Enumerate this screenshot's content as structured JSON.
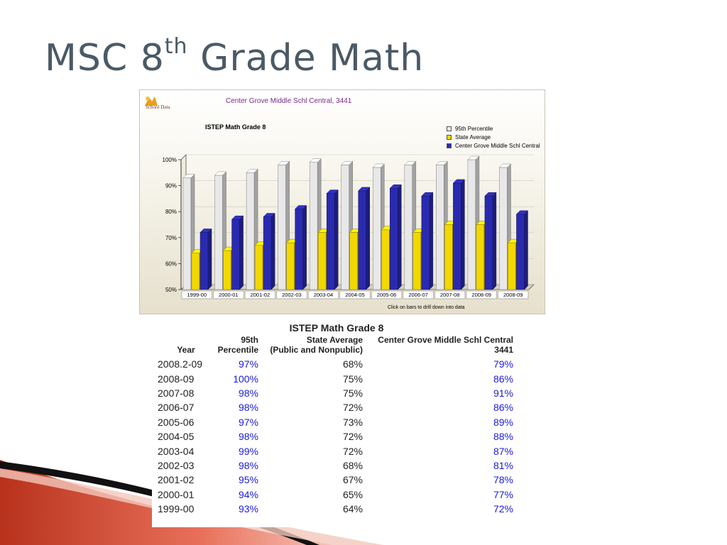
{
  "slide": {
    "title_main": "MSC 8",
    "title_sup": "th",
    "title_rest": " Grade Math"
  },
  "chart_panel": {
    "school_name": "Center Grove Middle Schl Central, 3441",
    "logo_text": "School Data",
    "click_note": "Click on bars to drill down into data"
  },
  "chart_data": {
    "type": "bar",
    "title": "ISTEP Math Grade 8",
    "categories": [
      "1999-00",
      "2000-01",
      "2001-02",
      "2002-03",
      "2003-04",
      "2004-05",
      "2005-06",
      "2006-07",
      "2007-08",
      "2008-09",
      "2008-09"
    ],
    "series": [
      {
        "name": "95th Percentile",
        "color": "#e8e8e8",
        "values": [
          93,
          94,
          95,
          98,
          99,
          98,
          97,
          98,
          98,
          100,
          97
        ]
      },
      {
        "name": "State Average",
        "color": "#f2d800",
        "values": [
          64,
          65,
          67,
          68,
          72,
          72,
          73,
          72,
          75,
          75,
          68
        ]
      },
      {
        "name": "Center Grove Middle Schl Central",
        "color": "#2a2ab0",
        "values": [
          72,
          77,
          78,
          81,
          87,
          88,
          89,
          86,
          91,
          86,
          79
        ]
      }
    ],
    "yticks": [
      "100%",
      "90%",
      "80%",
      "70%",
      "60%",
      "50%"
    ],
    "ylim": [
      50,
      100
    ],
    "legend_position": "top-right"
  },
  "table": {
    "title": "ISTEP Math Grade 8",
    "headers": {
      "year": "Year",
      "p95_line1": "95th",
      "p95_line2": "Percentile",
      "state_line1": "State Average",
      "state_line2": "(Public and Nonpublic)",
      "cg_line1": "Center Grove Middle Schl Central",
      "cg_line2": "3441"
    },
    "rows": [
      {
        "year": "2008.2-09",
        "p95": "97%",
        "state": "68%",
        "cg": "79%"
      },
      {
        "year": "2008-09",
        "p95": "100%",
        "state": "75%",
        "cg": "86%"
      },
      {
        "year": "2007-08",
        "p95": "98%",
        "state": "75%",
        "cg": "91%"
      },
      {
        "year": "2006-07",
        "p95": "98%",
        "state": "72%",
        "cg": "86%"
      },
      {
        "year": "2005-06",
        "p95": "97%",
        "state": "73%",
        "cg": "89%"
      },
      {
        "year": "2004-05",
        "p95": "98%",
        "state": "72%",
        "cg": "88%"
      },
      {
        "year": "2003-04",
        "p95": "99%",
        "state": "72%",
        "cg": "87%"
      },
      {
        "year": "2002-03",
        "p95": "98%",
        "state": "68%",
        "cg": "81%"
      },
      {
        "year": "2001-02",
        "p95": "95%",
        "state": "67%",
        "cg": "78%"
      },
      {
        "year": "2000-01",
        "p95": "94%",
        "state": "65%",
        "cg": "77%"
      },
      {
        "year": "1999-00",
        "p95": "93%",
        "state": "64%",
        "cg": "72%"
      }
    ]
  }
}
